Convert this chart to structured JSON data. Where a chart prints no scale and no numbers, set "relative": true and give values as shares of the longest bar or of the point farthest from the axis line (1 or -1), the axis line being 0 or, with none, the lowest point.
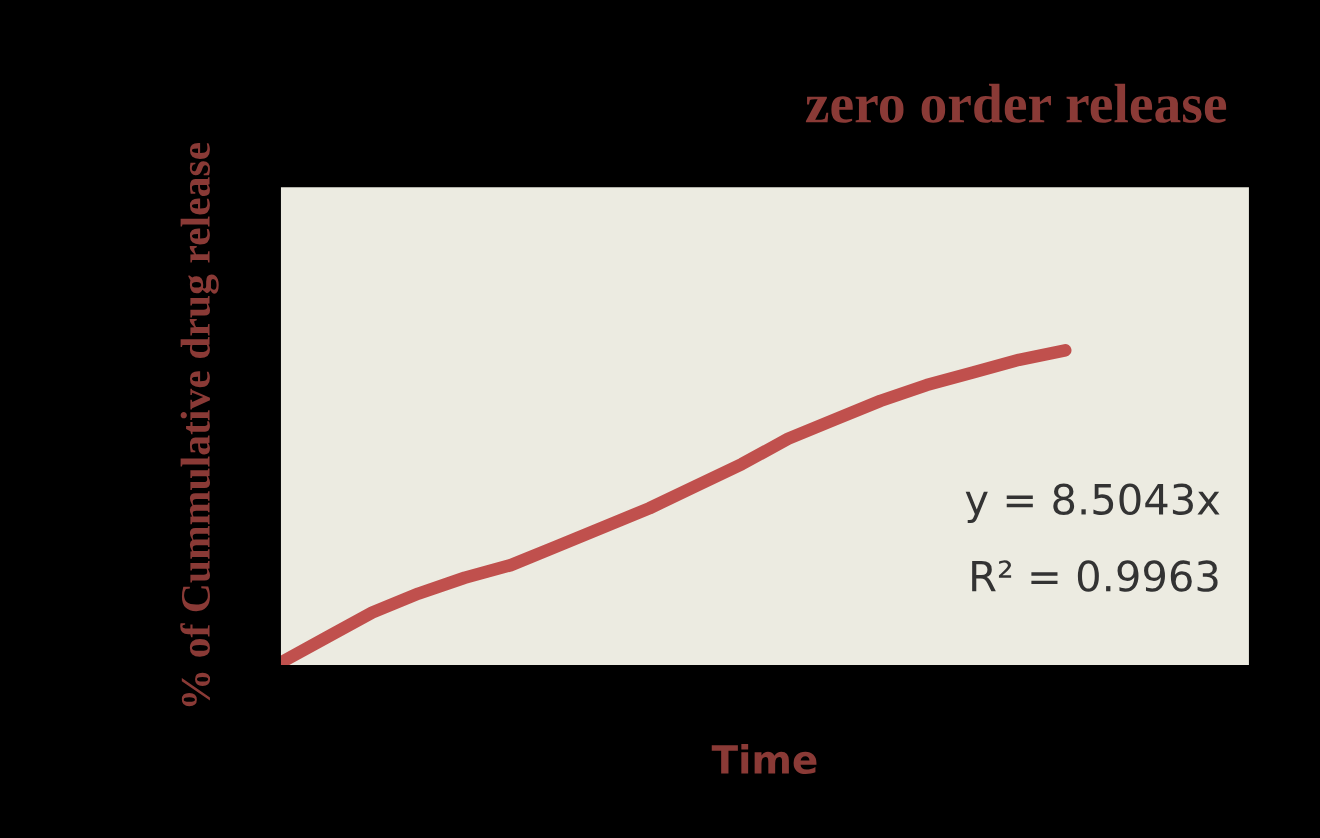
{
  "chart_data": {
    "type": "line",
    "title": "zero order release",
    "xlabel": "Time",
    "ylabel": "% of Cummulative drug release",
    "relative": true,
    "legend": false,
    "marker": "none",
    "line_style": "solid",
    "categories": [
      null,
      null,
      null,
      null,
      null,
      null,
      null,
      null,
      null,
      null,
      null,
      null,
      null,
      null,
      null,
      null,
      null,
      null,
      null,
      null,
      null,
      null
    ],
    "series": [
      {
        "color": "#c0504d",
        "values": [
          0.01,
          0.09,
          0.17,
          0.23,
          0.28,
          0.32,
          0.38,
          0.44,
          0.5,
          0.57,
          0.64,
          0.72,
          0.78,
          0.84,
          0.89,
          0.93,
          0.97,
          1.0,
          null,
          null,
          null,
          null
        ]
      }
    ],
    "annotations": [
      "y = 8.5043x",
      "R² = 0.9963"
    ]
  }
}
